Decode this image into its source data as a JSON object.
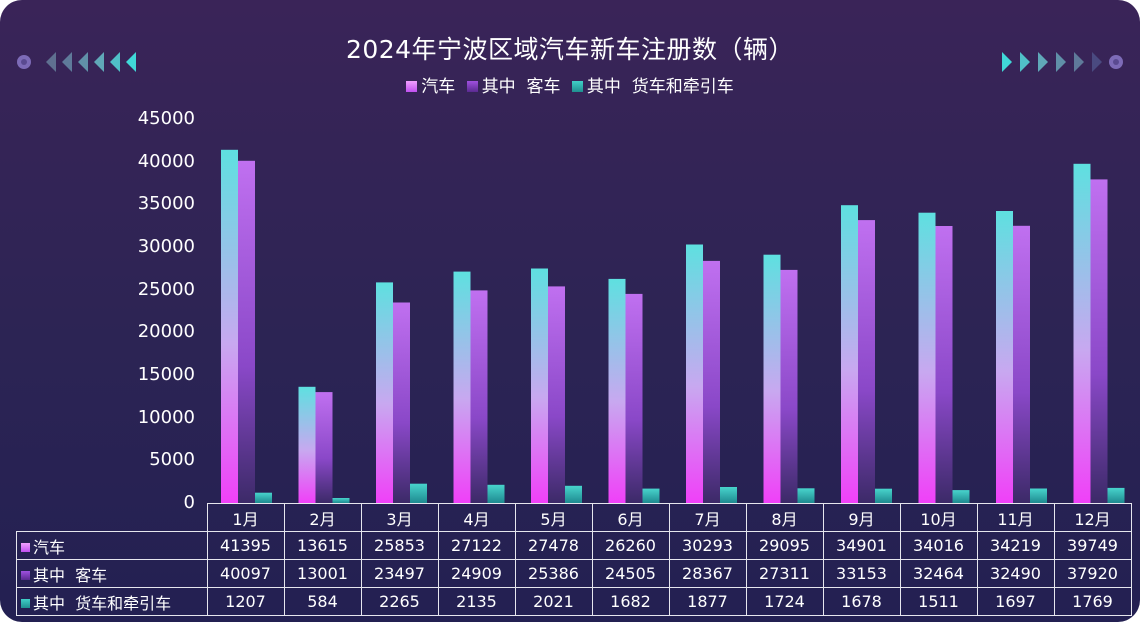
{
  "chart_data": {
    "type": "bar",
    "title": "2024年宁波区域汽车新车注册数（辆）",
    "categories": [
      "1月",
      "2月",
      "3月",
      "4月",
      "5月",
      "6月",
      "7月",
      "8月",
      "9月",
      "10月",
      "11月",
      "12月"
    ],
    "series": [
      {
        "name": "汽车",
        "values": [
          41395,
          13615,
          25853,
          27122,
          27478,
          26260,
          30293,
          29095,
          34901,
          34016,
          34219,
          39749
        ],
        "color": "#3fd8d8"
      },
      {
        "name": "其中  客车",
        "values": [
          40097,
          13001,
          23497,
          24909,
          25386,
          24505,
          28367,
          27311,
          33153,
          32464,
          32490,
          37920
        ],
        "color": "#b24ee0"
      },
      {
        "name": "其中  货车和牵引车",
        "values": [
          1207,
          584,
          2265,
          2135,
          2021,
          1682,
          1877,
          1724,
          1678,
          1511,
          1697,
          1769
        ],
        "color": "#2ab7b0"
      }
    ],
    "ylim": [
      0,
      45000
    ],
    "yticks": [
      "0",
      "5000",
      "10000",
      "15000",
      "20000",
      "25000",
      "30000",
      "35000",
      "40000",
      "45000"
    ],
    "legend_position": "top-center",
    "grid": false,
    "data_table": true
  },
  "colors": {
    "background_top": "#3a2458",
    "background_bottom": "#232052",
    "text": "#ffffff"
  }
}
